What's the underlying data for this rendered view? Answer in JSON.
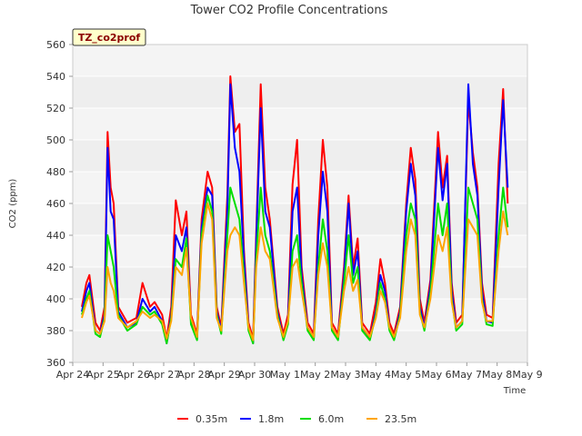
{
  "chart_data": {
    "type": "line",
    "title": "Tower CO2 Profile Concentrations",
    "xlabel": "Time",
    "ylabel": "CO2 (ppm)",
    "site_badge": "TZ_co2prof",
    "ylim": [
      360,
      560
    ],
    "yticks": [
      360,
      380,
      400,
      420,
      440,
      460,
      480,
      500,
      520,
      540,
      560
    ],
    "xlim": [
      0,
      15
    ],
    "xticks": [
      {
        "x": 0,
        "label": "Apr 24"
      },
      {
        "x": 1,
        "label": "Apr 25"
      },
      {
        "x": 2,
        "label": "Apr 26"
      },
      {
        "x": 3,
        "label": "Apr 27"
      },
      {
        "x": 4,
        "label": "Apr 28"
      },
      {
        "x": 5,
        "label": "Apr 29"
      },
      {
        "x": 6,
        "label": "Apr 30"
      },
      {
        "x": 7,
        "label": "May 1"
      },
      {
        "x": 8,
        "label": "May 2"
      },
      {
        "x": 9,
        "label": "May 3"
      },
      {
        "x": 10,
        "label": "May 4"
      },
      {
        "x": 11,
        "label": "May 5"
      },
      {
        "x": 12,
        "label": "May 6"
      },
      {
        "x": 13,
        "label": "May 7"
      },
      {
        "x": 14,
        "label": "May 8"
      },
      {
        "x": 15,
        "label": "May 9"
      }
    ],
    "grid": true,
    "legend_position": "bottom",
    "series": [
      {
        "name": "0.35m",
        "color": "#ff0000",
        "x": [
          0.3,
          0.45,
          0.55,
          0.75,
          0.9,
          1.05,
          1.15,
          1.25,
          1.35,
          1.5,
          1.8,
          2.1,
          2.3,
          2.55,
          2.7,
          2.95,
          3.1,
          3.25,
          3.4,
          3.6,
          3.75,
          3.9,
          4.1,
          4.25,
          4.45,
          4.6,
          4.75,
          4.9,
          5.1,
          5.2,
          5.35,
          5.5,
          5.65,
          5.8,
          5.95,
          6.05,
          6.2,
          6.35,
          6.5,
          6.75,
          6.95,
          7.1,
          7.25,
          7.4,
          7.55,
          7.75,
          7.95,
          8.1,
          8.25,
          8.4,
          8.55,
          8.75,
          8.95,
          9.1,
          9.25,
          9.4,
          9.55,
          9.8,
          10.0,
          10.15,
          10.3,
          10.45,
          10.6,
          10.8,
          11.0,
          11.15,
          11.3,
          11.45,
          11.6,
          11.8,
          12.05,
          12.2,
          12.35,
          12.5,
          12.65,
          12.85,
          13.05,
          13.2,
          13.35,
          13.5,
          13.65,
          13.85,
          14.05,
          14.2,
          14.35
        ],
        "y": [
          395,
          410,
          415,
          385,
          380,
          395,
          505,
          470,
          460,
          395,
          385,
          388,
          410,
          395,
          398,
          390,
          375,
          395,
          462,
          440,
          455,
          390,
          378,
          450,
          480,
          470,
          395,
          382,
          465,
          540,
          505,
          510,
          430,
          385,
          375,
          440,
          535,
          470,
          450,
          395,
          378,
          390,
          472,
          500,
          420,
          385,
          378,
          450,
          500,
          470,
          385,
          378,
          420,
          465,
          420,
          438,
          385,
          378,
          398,
          425,
          410,
          385,
          378,
          395,
          460,
          495,
          475,
          400,
          385,
          412,
          505,
          470,
          490,
          410,
          385,
          390,
          525,
          492,
          470,
          410,
          390,
          388,
          485,
          532,
          460
        ]
      },
      {
        "name": "1.8m",
        "color": "#0000ff",
        "x": [
          0.3,
          0.45,
          0.55,
          0.75,
          0.9,
          1.05,
          1.15,
          1.25,
          1.35,
          1.5,
          1.8,
          2.1,
          2.3,
          2.55,
          2.7,
          2.95,
          3.1,
          3.25,
          3.4,
          3.6,
          3.75,
          3.9,
          4.1,
          4.25,
          4.45,
          4.6,
          4.75,
          4.9,
          5.1,
          5.2,
          5.35,
          5.5,
          5.65,
          5.8,
          5.95,
          6.05,
          6.2,
          6.35,
          6.5,
          6.75,
          6.95,
          7.1,
          7.25,
          7.4,
          7.55,
          7.75,
          7.95,
          8.1,
          8.25,
          8.4,
          8.55,
          8.75,
          8.95,
          9.1,
          9.25,
          9.4,
          9.55,
          9.8,
          10.0,
          10.15,
          10.3,
          10.45,
          10.6,
          10.8,
          11.0,
          11.15,
          11.3,
          11.45,
          11.6,
          11.8,
          12.05,
          12.2,
          12.35,
          12.5,
          12.65,
          12.85,
          13.05,
          13.2,
          13.35,
          13.5,
          13.65,
          13.85,
          14.05,
          14.2,
          14.35
        ],
        "y": [
          392,
          405,
          410,
          380,
          378,
          390,
          495,
          455,
          450,
          392,
          382,
          385,
          400,
          392,
          395,
          386,
          372,
          390,
          440,
          430,
          445,
          386,
          375,
          445,
          470,
          465,
          392,
          380,
          455,
          535,
          495,
          480,
          425,
          382,
          372,
          435,
          520,
          455,
          445,
          392,
          375,
          386,
          455,
          470,
          415,
          382,
          375,
          440,
          480,
          455,
          382,
          375,
          415,
          460,
          415,
          430,
          382,
          375,
          392,
          415,
          405,
          382,
          375,
          392,
          455,
          485,
          465,
          395,
          382,
          408,
          495,
          462,
          485,
          405,
          382,
          386,
          535,
          485,
          465,
          405,
          386,
          385,
          470,
          525,
          470
        ]
      },
      {
        "name": "6.0m",
        "color": "#00dd00",
        "x": [
          0.3,
          0.45,
          0.55,
          0.75,
          0.9,
          1.05,
          1.15,
          1.25,
          1.35,
          1.5,
          1.8,
          2.1,
          2.3,
          2.55,
          2.7,
          2.95,
          3.1,
          3.25,
          3.4,
          3.6,
          3.75,
          3.9,
          4.1,
          4.25,
          4.45,
          4.6,
          4.75,
          4.9,
          5.1,
          5.2,
          5.35,
          5.5,
          5.65,
          5.8,
          5.95,
          6.05,
          6.2,
          6.35,
          6.5,
          6.75,
          6.95,
          7.1,
          7.25,
          7.4,
          7.55,
          7.75,
          7.95,
          8.1,
          8.25,
          8.4,
          8.55,
          8.75,
          8.95,
          9.1,
          9.25,
          9.4,
          9.55,
          9.8,
          10.0,
          10.15,
          10.3,
          10.45,
          10.6,
          10.8,
          11.0,
          11.15,
          11.3,
          11.45,
          11.6,
          11.8,
          12.05,
          12.2,
          12.35,
          12.5,
          12.65,
          12.85,
          13.05,
          13.2,
          13.35,
          13.5,
          13.65,
          13.85,
          14.05,
          14.2,
          14.35
        ],
        "y": [
          390,
          400,
          405,
          378,
          376,
          388,
          440,
          430,
          420,
          390,
          380,
          384,
          395,
          390,
          392,
          384,
          372,
          388,
          425,
          420,
          438,
          384,
          374,
          440,
          465,
          455,
          390,
          378,
          440,
          470,
          460,
          450,
          415,
          380,
          372,
          425,
          470,
          440,
          430,
          390,
          374,
          384,
          430,
          440,
          410,
          380,
          374,
          420,
          450,
          430,
          380,
          374,
          410,
          440,
          410,
          420,
          380,
          374,
          390,
          410,
          400,
          380,
          374,
          390,
          440,
          460,
          450,
          392,
          380,
          404,
          460,
          440,
          460,
          400,
          380,
          384,
          470,
          460,
          450,
          400,
          384,
          383,
          440,
          470,
          445
        ]
      },
      {
        "name": "23.5m",
        "color": "#ffa500",
        "x": [
          0.3,
          0.45,
          0.55,
          0.75,
          0.9,
          1.05,
          1.15,
          1.25,
          1.35,
          1.5,
          1.8,
          2.1,
          2.3,
          2.55,
          2.7,
          2.95,
          3.1,
          3.25,
          3.4,
          3.6,
          3.75,
          3.9,
          4.1,
          4.25,
          4.45,
          4.6,
          4.75,
          4.9,
          5.1,
          5.2,
          5.35,
          5.5,
          5.65,
          5.8,
          5.95,
          6.05,
          6.2,
          6.35,
          6.5,
          6.75,
          6.95,
          7.1,
          7.25,
          7.4,
          7.55,
          7.75,
          7.95,
          8.1,
          8.25,
          8.4,
          8.55,
          8.75,
          8.95,
          9.1,
          9.25,
          9.4,
          9.55,
          9.8,
          10.0,
          10.15,
          10.3,
          10.45,
          10.6,
          10.8,
          11.0,
          11.15,
          11.3,
          11.45,
          11.6,
          11.8,
          12.05,
          12.2,
          12.35,
          12.5,
          12.65,
          12.85,
          13.05,
          13.2,
          13.35,
          13.5,
          13.65,
          13.85,
          14.05,
          14.2,
          14.35
        ],
        "y": [
          388,
          398,
          402,
          380,
          378,
          386,
          420,
          410,
          405,
          388,
          382,
          386,
          392,
          388,
          390,
          386,
          375,
          386,
          420,
          415,
          432,
          388,
          376,
          435,
          460,
          450,
          388,
          380,
          430,
          440,
          445,
          440,
          410,
          382,
          374,
          420,
          445,
          430,
          425,
          388,
          376,
          386,
          420,
          425,
          405,
          382,
          376,
          415,
          435,
          420,
          382,
          376,
          405,
          420,
          405,
          412,
          382,
          376,
          388,
          405,
          398,
          382,
          376,
          388,
          430,
          450,
          440,
          390,
          382,
          400,
          440,
          430,
          445,
          398,
          382,
          386,
          450,
          445,
          440,
          398,
          386,
          386,
          430,
          455,
          440
        ]
      }
    ]
  }
}
